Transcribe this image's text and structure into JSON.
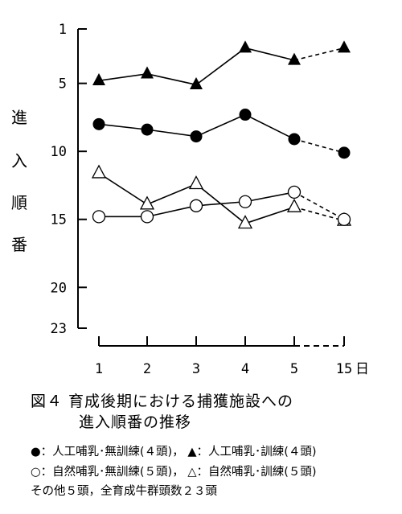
{
  "chart_data": {
    "type": "line",
    "title": "図４ 育成後期における捕獲施設への",
    "title_line2": "進入順番の推移",
    "ylabel": [
      "進",
      "入",
      "順",
      "番"
    ],
    "x_ticks": [
      "1",
      "2",
      "3",
      "4",
      "5",
      "15"
    ],
    "x_unit": "日",
    "y_ticks": [
      "1",
      "5",
      "10",
      "15",
      "20",
      "23"
    ],
    "y_range": [
      1,
      23
    ],
    "y_inverted": true,
    "dashed_segment_between": [
      "5",
      "15"
    ],
    "series": [
      {
        "marker": "filled-triangle",
        "values": [
          4.8,
          4.3,
          5.1,
          2.4,
          3.3,
          2.4
        ]
      },
      {
        "marker": "filled-circle",
        "values": [
          8.0,
          8.4,
          8.9,
          7.3,
          9.1,
          10.1
        ]
      },
      {
        "marker": "open-triangle",
        "values": [
          11.6,
          13.9,
          12.4,
          15.3,
          14.1,
          15.1
        ]
      },
      {
        "marker": "open-circle",
        "values": [
          14.8,
          14.8,
          14.0,
          13.7,
          13.0,
          15.0
        ]
      }
    ]
  },
  "legend": {
    "row1_left": "●：人工哺乳･無訓練(４頭)，",
    "row1_right": "▲：人工哺乳･訓練(４頭)",
    "row2_left": "○：自然哺乳･無訓練(５頭)，",
    "row2_right": "△：自然哺乳･訓練(５頭)",
    "note": "その他５頭，全育成牛群頭数２３頭"
  }
}
